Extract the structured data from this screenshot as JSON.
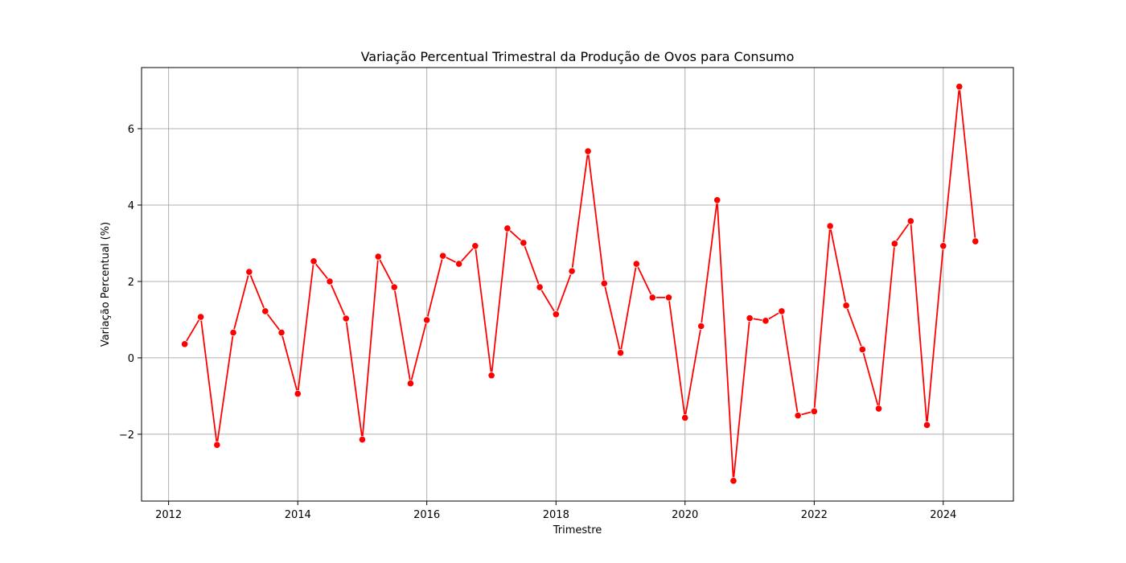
{
  "chart_data": {
    "type": "line",
    "title": "Variação Percentual Trimestral da Produção de Ovos para Consumo",
    "xlabel": "Trimestre",
    "ylabel": "Variação Percentual (%)",
    "xlim": [
      "2011-08-01",
      "2025-02-01"
    ],
    "ylim": [
      -3.75,
      7.6
    ],
    "x_ticks": [
      "2012",
      "2014",
      "2016",
      "2018",
      "2020",
      "2022",
      "2024"
    ],
    "y_ticks": [
      -2,
      0,
      2,
      4,
      6
    ],
    "y_tick_labels": [
      "−2",
      "0",
      "2",
      "4",
      "6"
    ],
    "grid": true,
    "line_color": "#ff0000",
    "marker": "circle",
    "series": [
      {
        "x": [
          "2012-04-01",
          "2012-07-01",
          "2012-10-01",
          "2013-01-01",
          "2013-04-01",
          "2013-07-01",
          "2013-10-01",
          "2014-01-01",
          "2014-04-01",
          "2014-07-01",
          "2014-10-01",
          "2015-01-01",
          "2015-04-01",
          "2015-07-01",
          "2015-10-01",
          "2016-01-01",
          "2016-04-01",
          "2016-07-01",
          "2016-10-01",
          "2017-01-01",
          "2017-04-01",
          "2017-07-01",
          "2017-10-01",
          "2018-01-01",
          "2018-04-01",
          "2018-07-01",
          "2018-10-01",
          "2019-01-01",
          "2019-04-01",
          "2019-07-01",
          "2019-10-01",
          "2020-01-01",
          "2020-04-01",
          "2020-07-01",
          "2020-10-01",
          "2021-01-01",
          "2021-04-01",
          "2021-07-01",
          "2021-10-01",
          "2022-01-01",
          "2022-04-01",
          "2022-07-01",
          "2022-10-01",
          "2023-01-01",
          "2023-04-01",
          "2023-07-01",
          "2023-10-01",
          "2024-01-01",
          "2024-04-01",
          "2024-07-01"
        ],
        "values": [
          0.36,
          1.07,
          -2.28,
          0.66,
          2.25,
          1.22,
          0.66,
          -0.94,
          2.53,
          2.0,
          1.03,
          -2.14,
          2.65,
          1.85,
          -0.67,
          0.99,
          2.67,
          2.46,
          2.93,
          -0.46,
          3.39,
          3.01,
          1.85,
          1.14,
          2.27,
          5.41,
          1.95,
          0.13,
          2.46,
          1.58,
          1.58,
          -1.57,
          0.83,
          4.13,
          -3.22,
          1.04,
          0.97,
          1.22,
          -1.51,
          -1.4,
          3.45,
          1.37,
          0.22,
          -1.33,
          2.99,
          3.58,
          -1.76,
          2.93,
          7.1,
          3.05
        ]
      }
    ]
  }
}
